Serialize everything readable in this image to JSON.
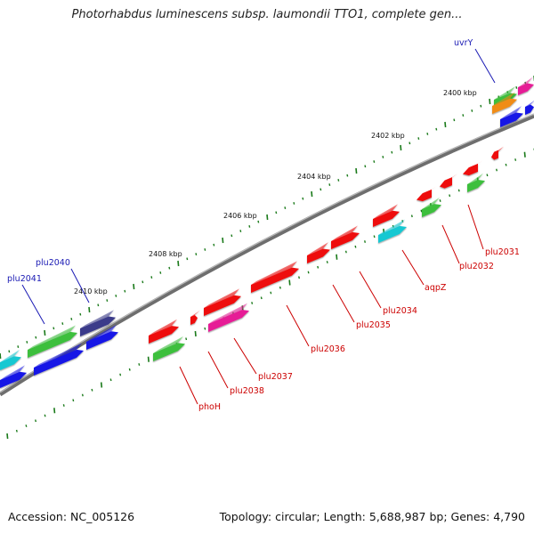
{
  "title": "Photorhabdus luminescens subsp. laumondii TTO1, complete gen...",
  "footer": {
    "accession": "Accession: NC_005126",
    "summary": "Topology: circular; Length: 5,688,987 bp; Genes: 4,790"
  },
  "colors": {
    "backbone": "#7f7f7f",
    "red": "#ee0a0a",
    "green": "#3cbf3c",
    "blue": "#1414e6",
    "cyan": "#19c8d2",
    "magenta": "#e61e96",
    "navy": "#3a3a8a",
    "orange": "#f08c14",
    "tick": "#1a7a1a",
    "label_red": "#cc0000",
    "label_blue": "#1a1ab4"
  },
  "kbp_labels": [
    "2400 kbp",
    "2402 kbp",
    "2404 kbp",
    "2406 kbp",
    "2408 kbp",
    "2410 kbp"
  ],
  "gene_labels": [
    "uvrY",
    "plu2040",
    "plu2041",
    "plu2031",
    "plu2032",
    "aqpZ",
    "plu2034",
    "plu2035",
    "plu2036",
    "plu2037",
    "plu2038",
    "phoH"
  ]
}
